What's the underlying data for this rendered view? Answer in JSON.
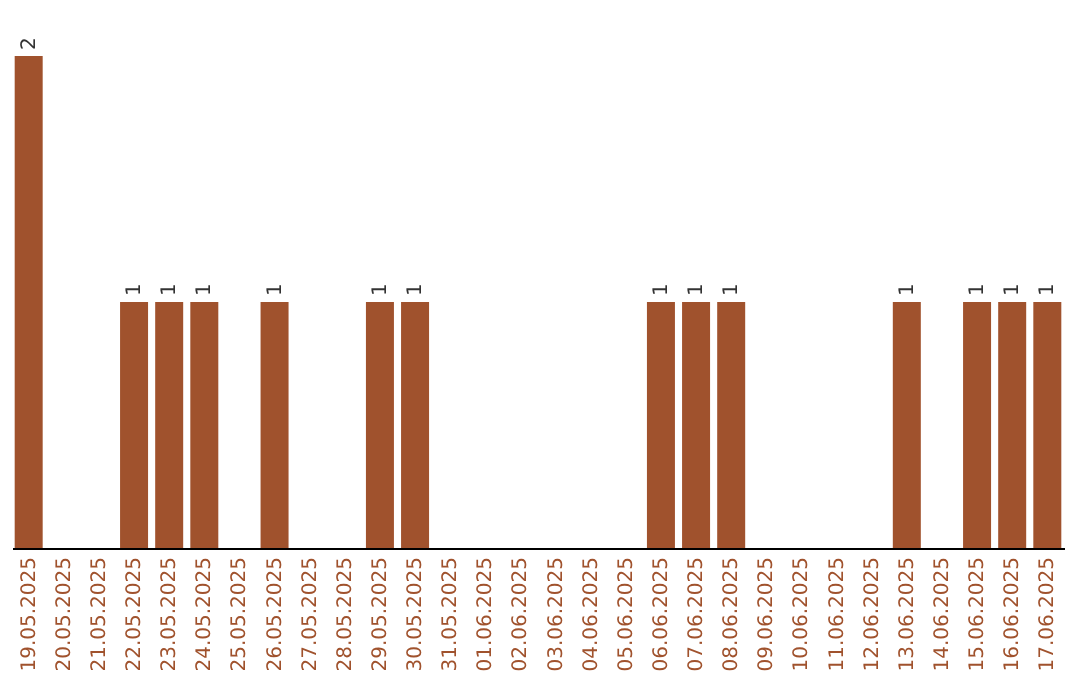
{
  "chart_data": {
    "type": "bar",
    "categories": [
      "19.05.2025",
      "20.05.2025",
      "21.05.2025",
      "22.05.2025",
      "23.05.2025",
      "24.05.2025",
      "25.05.2025",
      "26.05.2025",
      "27.05.2025",
      "28.05.2025",
      "29.05.2025",
      "30.05.2025",
      "31.05.2025",
      "01.06.2025",
      "02.06.2025",
      "03.06.2025",
      "04.06.2025",
      "05.06.2025",
      "06.06.2025",
      "07.06.2025",
      "08.06.2025",
      "09.06.2025",
      "10.06.2025",
      "11.06.2025",
      "12.06.2025",
      "13.06.2025",
      "14.06.2025",
      "15.06.2025",
      "16.06.2025",
      "17.06.2025"
    ],
    "values": [
      2,
      0,
      0,
      1,
      1,
      1,
      0,
      1,
      0,
      0,
      1,
      1,
      0,
      0,
      0,
      0,
      0,
      0,
      1,
      1,
      1,
      0,
      0,
      0,
      0,
      1,
      0,
      1,
      1,
      1
    ],
    "value_labels": [
      "2",
      null,
      null,
      "1",
      "1",
      "1",
      null,
      "1",
      null,
      null,
      "1",
      "1",
      null,
      null,
      null,
      null,
      null,
      null,
      "1",
      "1",
      "1",
      null,
      null,
      null,
      null,
      "1",
      null,
      "1",
      "1",
      "1"
    ],
    "color": "#a0522d",
    "grid": false
  }
}
